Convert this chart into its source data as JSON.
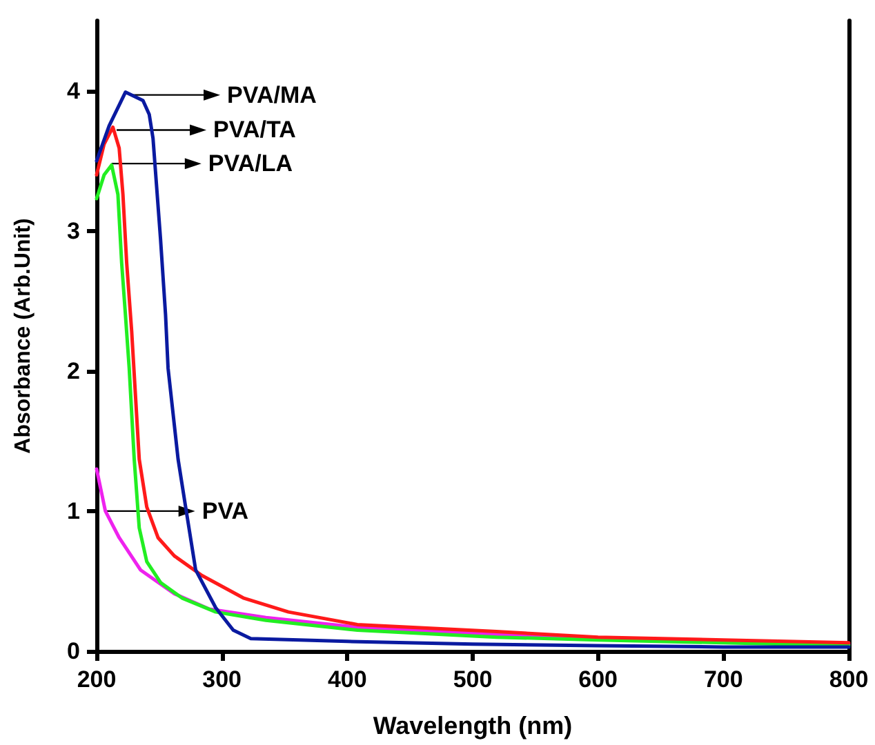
{
  "chart_data": {
    "type": "line",
    "xlabel": "Wavelength (nm)",
    "ylabel": "Absorbance (Arb.Unit)",
    "xlim": [
      200,
      800
    ],
    "xticks": [
      200,
      300,
      400,
      500,
      600,
      700,
      800
    ],
    "ylim": [
      0,
      4.5
    ],
    "yticks": [
      0,
      1,
      2,
      3,
      4
    ],
    "grid": false,
    "legend": false,
    "marker": "none",
    "line_style": "solid",
    "series": [
      {
        "color": "#0a1aa0",
        "x": [
          200,
          210,
          223,
          237,
          242,
          245,
          251,
          255,
          257,
          265,
          271,
          279,
          295,
          309,
          323,
          400,
          500,
          600,
          700,
          800
        ],
        "values": [
          3.5,
          3.75,
          3.99,
          3.93,
          3.83,
          3.66,
          2.94,
          2.4,
          2.02,
          1.37,
          1.03,
          0.58,
          0.31,
          0.15,
          0.09,
          0.07,
          0.05,
          0.04,
          0.03,
          0.03
        ]
      },
      {
        "color": "#ff1a1a",
        "x": [
          200,
          206,
          213,
          218,
          221,
          224,
          228,
          234,
          240,
          249,
          262,
          284,
          317,
          353,
          408,
          519,
          600,
          700,
          800
        ],
        "values": [
          3.4,
          3.62,
          3.74,
          3.59,
          3.26,
          2.77,
          2.28,
          1.37,
          1.03,
          0.81,
          0.68,
          0.54,
          0.38,
          0.28,
          0.19,
          0.14,
          0.1,
          0.08,
          0.06
        ]
      },
      {
        "color": "#22ee22",
        "x": [
          200,
          206,
          212,
          217,
          220,
          223,
          226,
          230,
          234,
          240,
          251,
          268,
          295,
          335,
          408,
          519,
          600,
          700,
          800
        ],
        "values": [
          3.23,
          3.4,
          3.47,
          3.26,
          2.77,
          2.4,
          2.02,
          1.37,
          0.88,
          0.64,
          0.49,
          0.38,
          0.28,
          0.22,
          0.15,
          0.1,
          0.08,
          0.06,
          0.04
        ]
      },
      {
        "color": "#ee22ee",
        "x": [
          200,
          207,
          218,
          235,
          262,
          290,
          335,
          408,
          519,
          600,
          700,
          800
        ],
        "values": [
          1.3,
          1.0,
          0.81,
          0.58,
          0.41,
          0.3,
          0.24,
          0.17,
          0.12,
          0.09,
          0.07,
          0.05
        ]
      }
    ],
    "annotations": [
      {
        "text": "PVA/MA",
        "x": 227,
        "y": 3.97
      },
      {
        "text": "PVA/TA",
        "x": 216,
        "y": 3.72
      },
      {
        "text": "PVA/LA",
        "x": 212,
        "y": 3.48
      },
      {
        "text": "PVA",
        "x": 207,
        "y": 1.0
      }
    ]
  }
}
